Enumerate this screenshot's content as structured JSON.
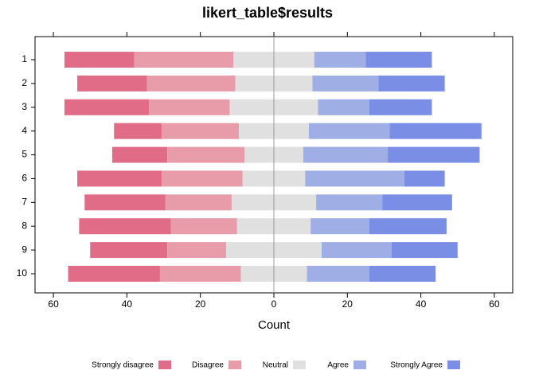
{
  "chart_data": {
    "type": "diverging_bar",
    "title": "likert_table$results",
    "x_label": "Count",
    "categories": [
      "1",
      "2",
      "3",
      "4",
      "5",
      "6",
      "7",
      "8",
      "9",
      "10"
    ],
    "series": [
      {
        "name": "Strongly disagree",
        "color": "#e06c88",
        "values": [
          19,
          19,
          23,
          13,
          15,
          23,
          22,
          25,
          21,
          25
        ]
      },
      {
        "name": "Disagree",
        "color": "#e89ca9",
        "values": [
          27,
          24,
          22,
          21,
          21,
          22,
          18,
          18,
          16,
          22
        ]
      },
      {
        "name": "Neutral",
        "color": "#e0e0e0",
        "values": [
          22,
          21,
          24,
          19,
          16,
          17,
          23,
          20,
          26,
          18
        ]
      },
      {
        "name": "Agree",
        "color": "#a0aee6",
        "values": [
          14,
          18,
          14,
          22,
          23,
          27,
          18,
          16,
          19,
          17
        ]
      },
      {
        "name": "Strongly Agree",
        "color": "#7b8ee6",
        "values": [
          18,
          18,
          17,
          25,
          25,
          11,
          19,
          21,
          18,
          18
        ]
      }
    ],
    "xlim": [
      -65,
      65
    ],
    "xticks": [
      {
        "value": -60,
        "label": "60"
      },
      {
        "value": -40,
        "label": "40"
      },
      {
        "value": -20,
        "label": "20"
      },
      0,
      20,
      40,
      60
    ]
  }
}
